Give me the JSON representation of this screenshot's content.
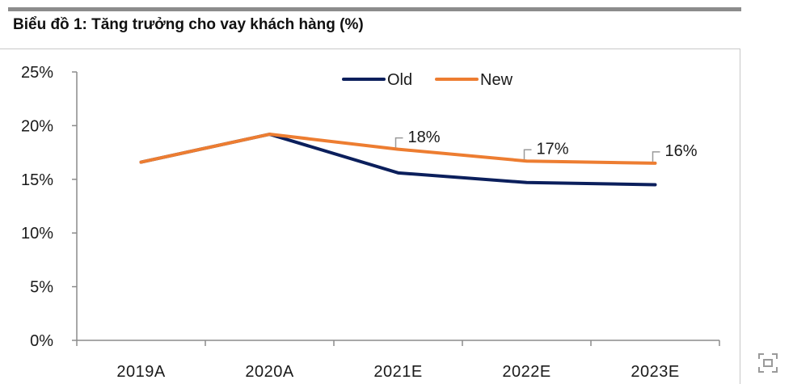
{
  "page": {
    "title": "Biểu đồ 1:  Tăng trưởng cho vay khách hàng (%)",
    "expand_icon": "fullscreen-icon"
  },
  "colors": {
    "old": "#0b1f5c",
    "new": "#ed7d31",
    "axis": "#8c8c8c",
    "text": "#1a1a1a",
    "rule": "#8c8c8c",
    "callout": "#9a9a9a"
  },
  "chart_data": {
    "type": "line",
    "title": "Biểu đồ 1:  Tăng trưởng cho vay khách hàng (%)",
    "xlabel": "",
    "ylabel": "",
    "categories": [
      "2019A",
      "2020A",
      "2021E",
      "2022E",
      "2023E"
    ],
    "ylim": [
      0,
      25
    ],
    "yticks": [
      0,
      5,
      10,
      15,
      20,
      25
    ],
    "ytick_labels": [
      "0%",
      "5%",
      "10%",
      "15%",
      "20%",
      "25%"
    ],
    "grid": false,
    "legend_position": "top-center",
    "series": [
      {
        "name": "Old",
        "color": "#0b1f5c",
        "values": [
          16.6,
          19.2,
          15.6,
          14.7,
          14.5
        ]
      },
      {
        "name": "New",
        "color": "#ed7d31",
        "values": [
          16.6,
          19.2,
          17.8,
          16.7,
          16.5
        ]
      }
    ],
    "annotations": [
      {
        "series": "New",
        "category": "2021E",
        "label": "18%"
      },
      {
        "series": "New",
        "category": "2022E",
        "label": "17%"
      },
      {
        "series": "New",
        "category": "2023E",
        "label": "16%"
      }
    ]
  }
}
